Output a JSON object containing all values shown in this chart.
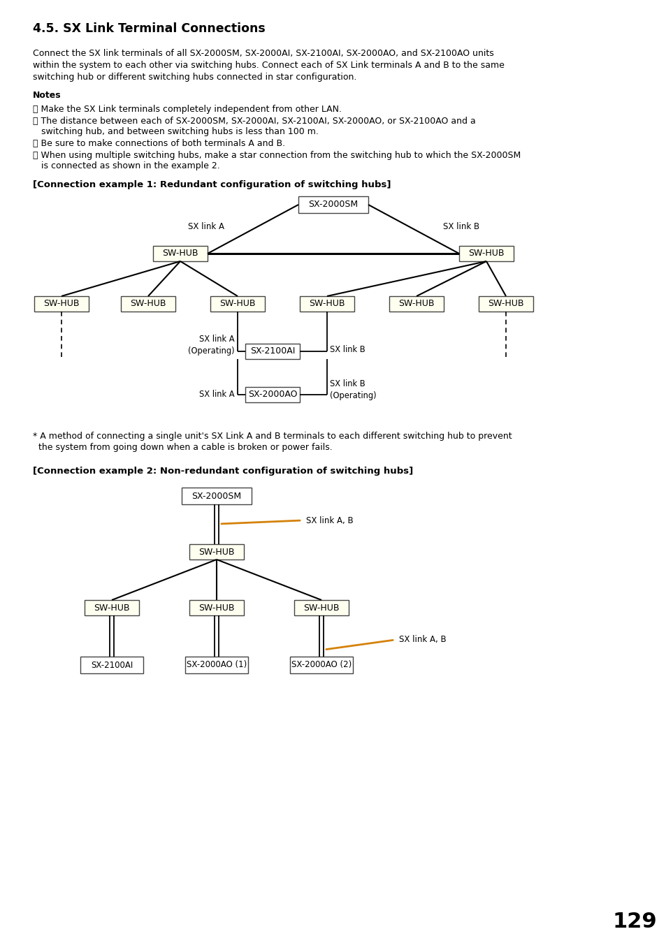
{
  "title": "4.5. SX Link Terminal Connections",
  "intro_line1": "Connect the SX link terminals of all SX-2000SM, SX-2000AI, SX-2100AI, SX-2000AO, and SX-2100AO units",
  "intro_line2": "within the system to each other via switching hubs. Connect each of SX Link terminals A and B to the same",
  "intro_line3": "switching hub or different switching hubs connected in star configuration.",
  "notes_title": "Notes",
  "note1": "・ Make the SX Link terminals completely independent from other LAN.",
  "note2a": "・ The distance between each of SX-2000SM, SX-2000AI, SX-2100AI, SX-2000AO, or SX-2100AO and a",
  "note2b": "   switching hub, and between switching hubs is less than 100 m.",
  "note3": "・ Be sure to make connections of both terminals A and B.",
  "note4a": "・ When using multiple switching hubs, make a star connection from the switching hub to which the SX-2000SM",
  "note4b": "   is connected as shown in the example 2.",
  "ex1_title": "[Connection example 1: Redundant configuration of switching hubs]",
  "ex2_title": "[Connection example 2: Non-redundant configuration of switching hubs]",
  "footnote_line1": "* A method of connecting a single unit's SX Link A and B terminals to each different switching hub to prevent",
  "footnote_line2": "  the system from going down when a cable is broken or power fails.",
  "page_number": "129",
  "sw_hub_fill": "#FFFFF0",
  "sw_hub_edge": "#444444",
  "sx_sm_fill": "#FFFFFF",
  "sx_sm_edge": "#444444",
  "orange_color": "#D4820A",
  "bg_color": "#FFFFFF",
  "text_color": "#000000"
}
